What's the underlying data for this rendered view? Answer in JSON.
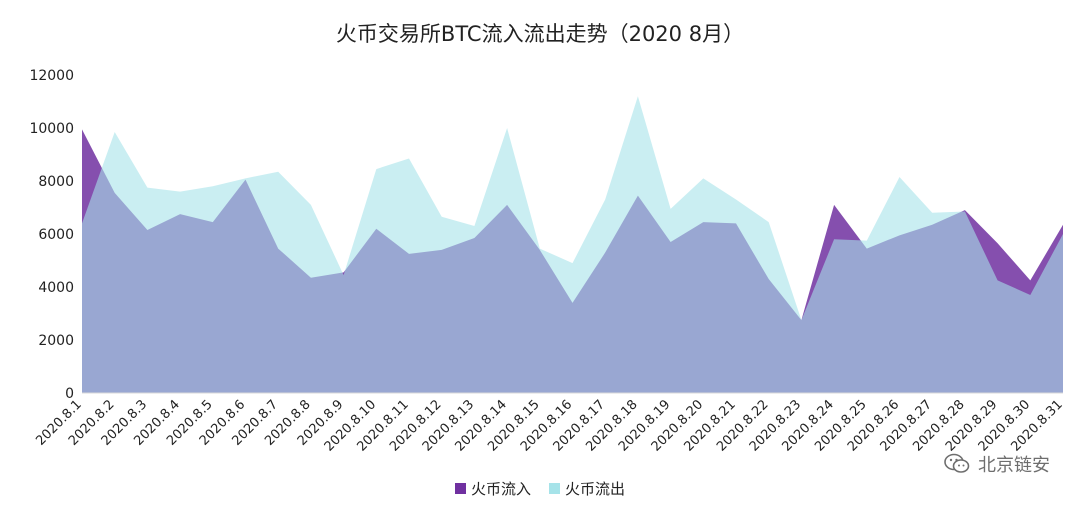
{
  "chart_data": {
    "type": "area",
    "title": "火币交易所BTC流入流出走势（2020 8月）",
    "xlabel": "",
    "ylabel": "",
    "ylim": [
      0,
      12000
    ],
    "yticks": [
      "0",
      "2000",
      "4000",
      "6000",
      "8000",
      "10000",
      "12000"
    ],
    "grid": false,
    "legend_position": "bottom",
    "categories": [
      "2020.8.1",
      "2020.8.2",
      "2020.8.3",
      "2020.8.4",
      "2020.8.5",
      "2020.8.6",
      "2020.8.7",
      "2020.8.8",
      "2020.8.9",
      "2020.8.10",
      "2020.8.11",
      "2020.8.12",
      "2020.8.13",
      "2020.8.14",
      "2020.8.15",
      "2020.8.16",
      "2020.8.17",
      "2020.8.18",
      "2020.8.19",
      "2020.8.20",
      "2020.8.21",
      "2020.8.22",
      "2020.8.23",
      "2020.8.24",
      "2020.8.25",
      "2020.8.26",
      "2020.8.27",
      "2020.8.28",
      "2020.8.29",
      "2020.8.30",
      "2020.8.31"
    ],
    "series": [
      {
        "name": "火币流入",
        "color": "#7030a0",
        "values": [
          9950,
          7550,
          6150,
          6750,
          6450,
          8050,
          5450,
          4350,
          4550,
          6200,
          5250,
          5400,
          5850,
          7100,
          5400,
          3400,
          5300,
          7450,
          5700,
          6450,
          6400,
          4300,
          2750,
          7100,
          5450,
          5950,
          6350,
          6900,
          5650,
          4250,
          6350
        ]
      },
      {
        "name": "火币流出",
        "color": "#a6e3e9",
        "values": [
          6400,
          9850,
          7750,
          7600,
          7800,
          8100,
          8350,
          7100,
          4450,
          8450,
          8850,
          6650,
          6300,
          10000,
          5450,
          4900,
          7300,
          11200,
          6950,
          8100,
          7300,
          6450,
          2750,
          5800,
          5750,
          8150,
          6800,
          6850,
          4250,
          3700,
          6000
        ]
      }
    ]
  },
  "legend": {
    "inflow_label": "火币流入",
    "outflow_label": "火币流出"
  },
  "watermark": {
    "text": "北京链安",
    "icon": "wechat-icon"
  }
}
